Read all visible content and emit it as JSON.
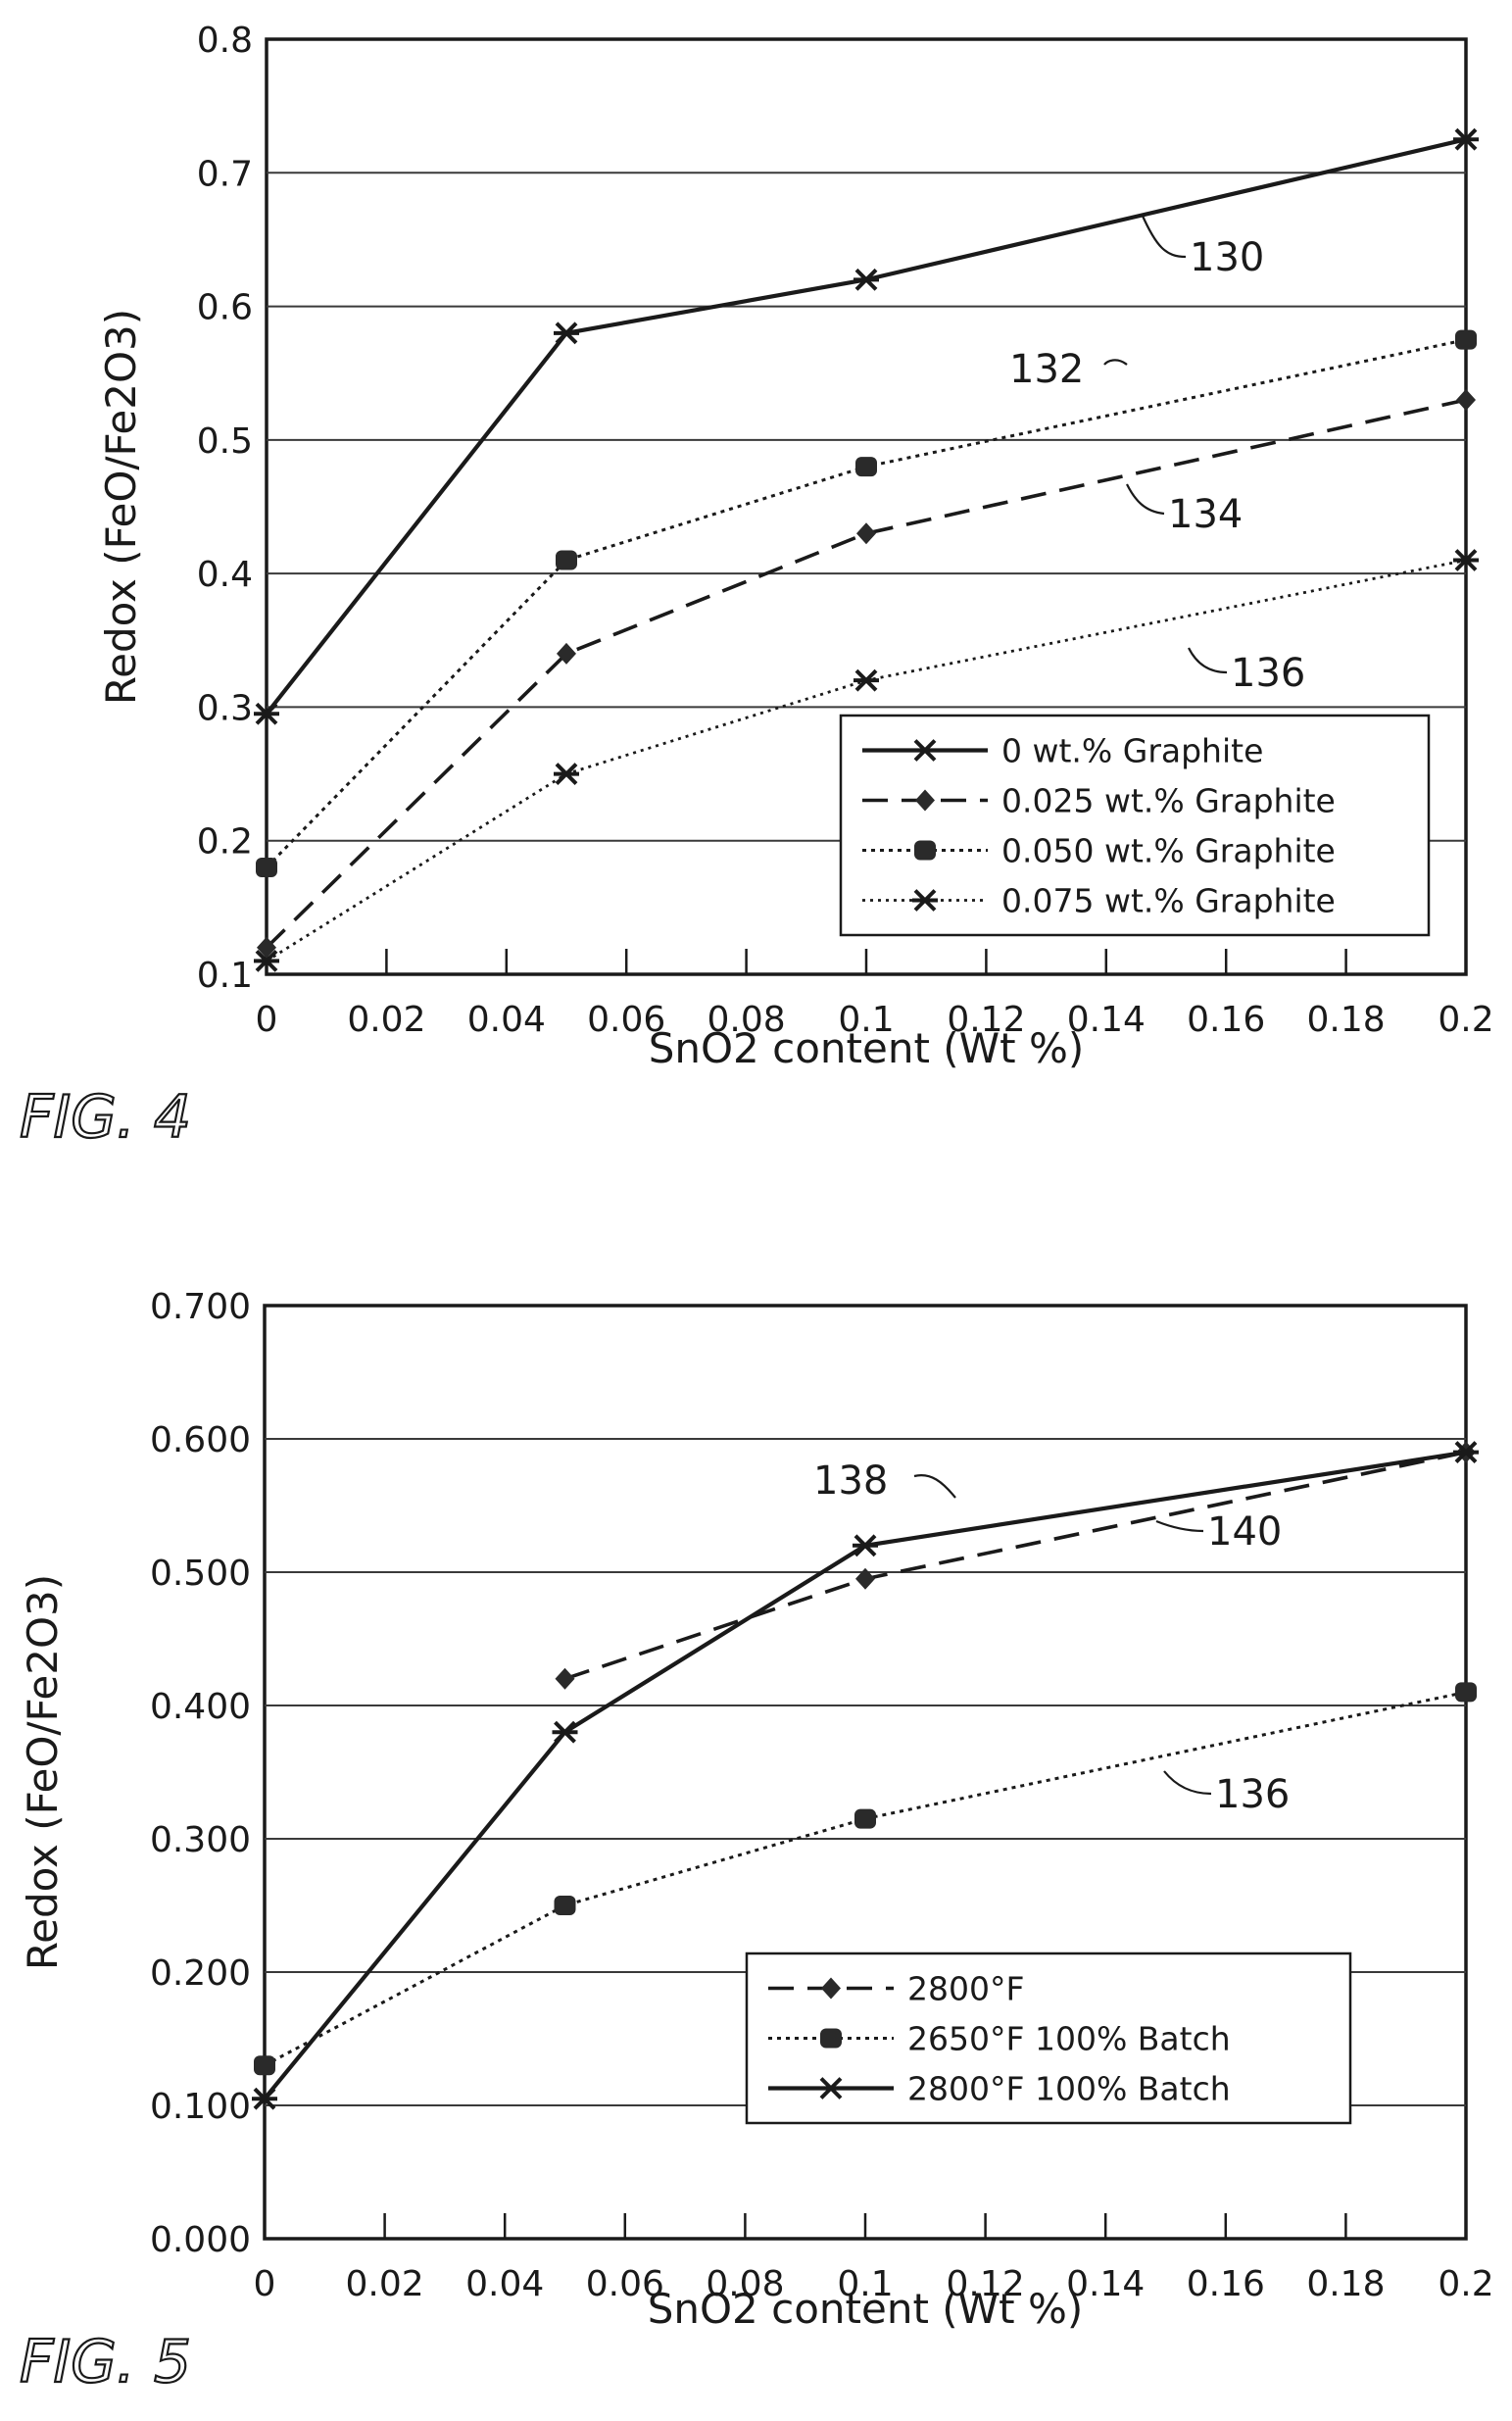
{
  "chart_data": [
    {
      "type": "line",
      "figure_label": "FIG. 4",
      "xlabel": "SnO2 content (Wt %)",
      "ylabel": "Redox (FeO/Fe2O3)",
      "xlim": [
        0,
        0.2
      ],
      "ylim": [
        0.1,
        0.8
      ],
      "xticks": [
        "0",
        "0.02",
        "0.04",
        "0.06",
        "0.08",
        "0.1",
        "0.12",
        "0.14",
        "0.16",
        "0.18",
        "0.2"
      ],
      "yticks": [
        "0.1",
        "0.2",
        "0.3",
        "0.4",
        "0.5",
        "0.6",
        "0.7",
        "0.8"
      ],
      "grid": "horizontal",
      "legend_position": "bottom-right",
      "series": [
        {
          "name": "0 wt.% Graphite",
          "ref": "130",
          "style": "solid-star",
          "x": [
            0,
            0.05,
            0.1,
            0.2
          ],
          "y": [
            0.295,
            0.58,
            0.62,
            0.725
          ]
        },
        {
          "name": "0.025 wt.% Graphite",
          "ref": "134",
          "style": "dashed-diamond",
          "x": [
            0,
            0.05,
            0.1,
            0.2
          ],
          "y": [
            0.12,
            0.34,
            0.43,
            0.53
          ]
        },
        {
          "name": "0.050 wt.% Graphite",
          "ref": "132",
          "style": "dotted-square",
          "x": [
            0,
            0.05,
            0.1,
            0.2
          ],
          "y": [
            0.18,
            0.41,
            0.48,
            0.575
          ]
        },
        {
          "name": "0.075 wt.% Graphite",
          "ref": "136",
          "style": "thin-star",
          "x": [
            0,
            0.05,
            0.1,
            0.2
          ],
          "y": [
            0.11,
            0.25,
            0.32,
            0.41
          ]
        }
      ]
    },
    {
      "type": "line",
      "figure_label": "FIG. 5",
      "xlabel": "SnO2 content (Wt %)",
      "ylabel": "Redox (FeO/Fe2O3)",
      "xlim": [
        0,
        0.2
      ],
      "ylim": [
        0,
        0.7
      ],
      "xticks": [
        "0",
        "0.02",
        "0.04",
        "0.06",
        "0.08",
        "0.1",
        "0.12",
        "0.14",
        "0.16",
        "0.18",
        "0.2"
      ],
      "yticks": [
        "0.000",
        "0.100",
        "0.200",
        "0.300",
        "0.400",
        "0.500",
        "0.600",
        "0.700"
      ],
      "grid": "horizontal",
      "legend_position": "bottom-right",
      "series": [
        {
          "name": "2800°F",
          "ref": "140",
          "style": "dashed-diamond",
          "x": [
            0.05,
            0.1,
            0.2
          ],
          "y": [
            0.42,
            0.495,
            0.59
          ]
        },
        {
          "name": "2650°F 100% Batch",
          "ref": "136",
          "style": "dotted-square",
          "x": [
            0,
            0.05,
            0.1,
            0.2
          ],
          "y": [
            0.13,
            0.25,
            0.315,
            0.41
          ]
        },
        {
          "name": "2800°F 100% Batch",
          "ref": "138",
          "style": "solid-star",
          "x": [
            0,
            0.05,
            0.1,
            0.2
          ],
          "y": [
            0.105,
            0.38,
            0.52,
            0.59
          ]
        }
      ]
    }
  ]
}
